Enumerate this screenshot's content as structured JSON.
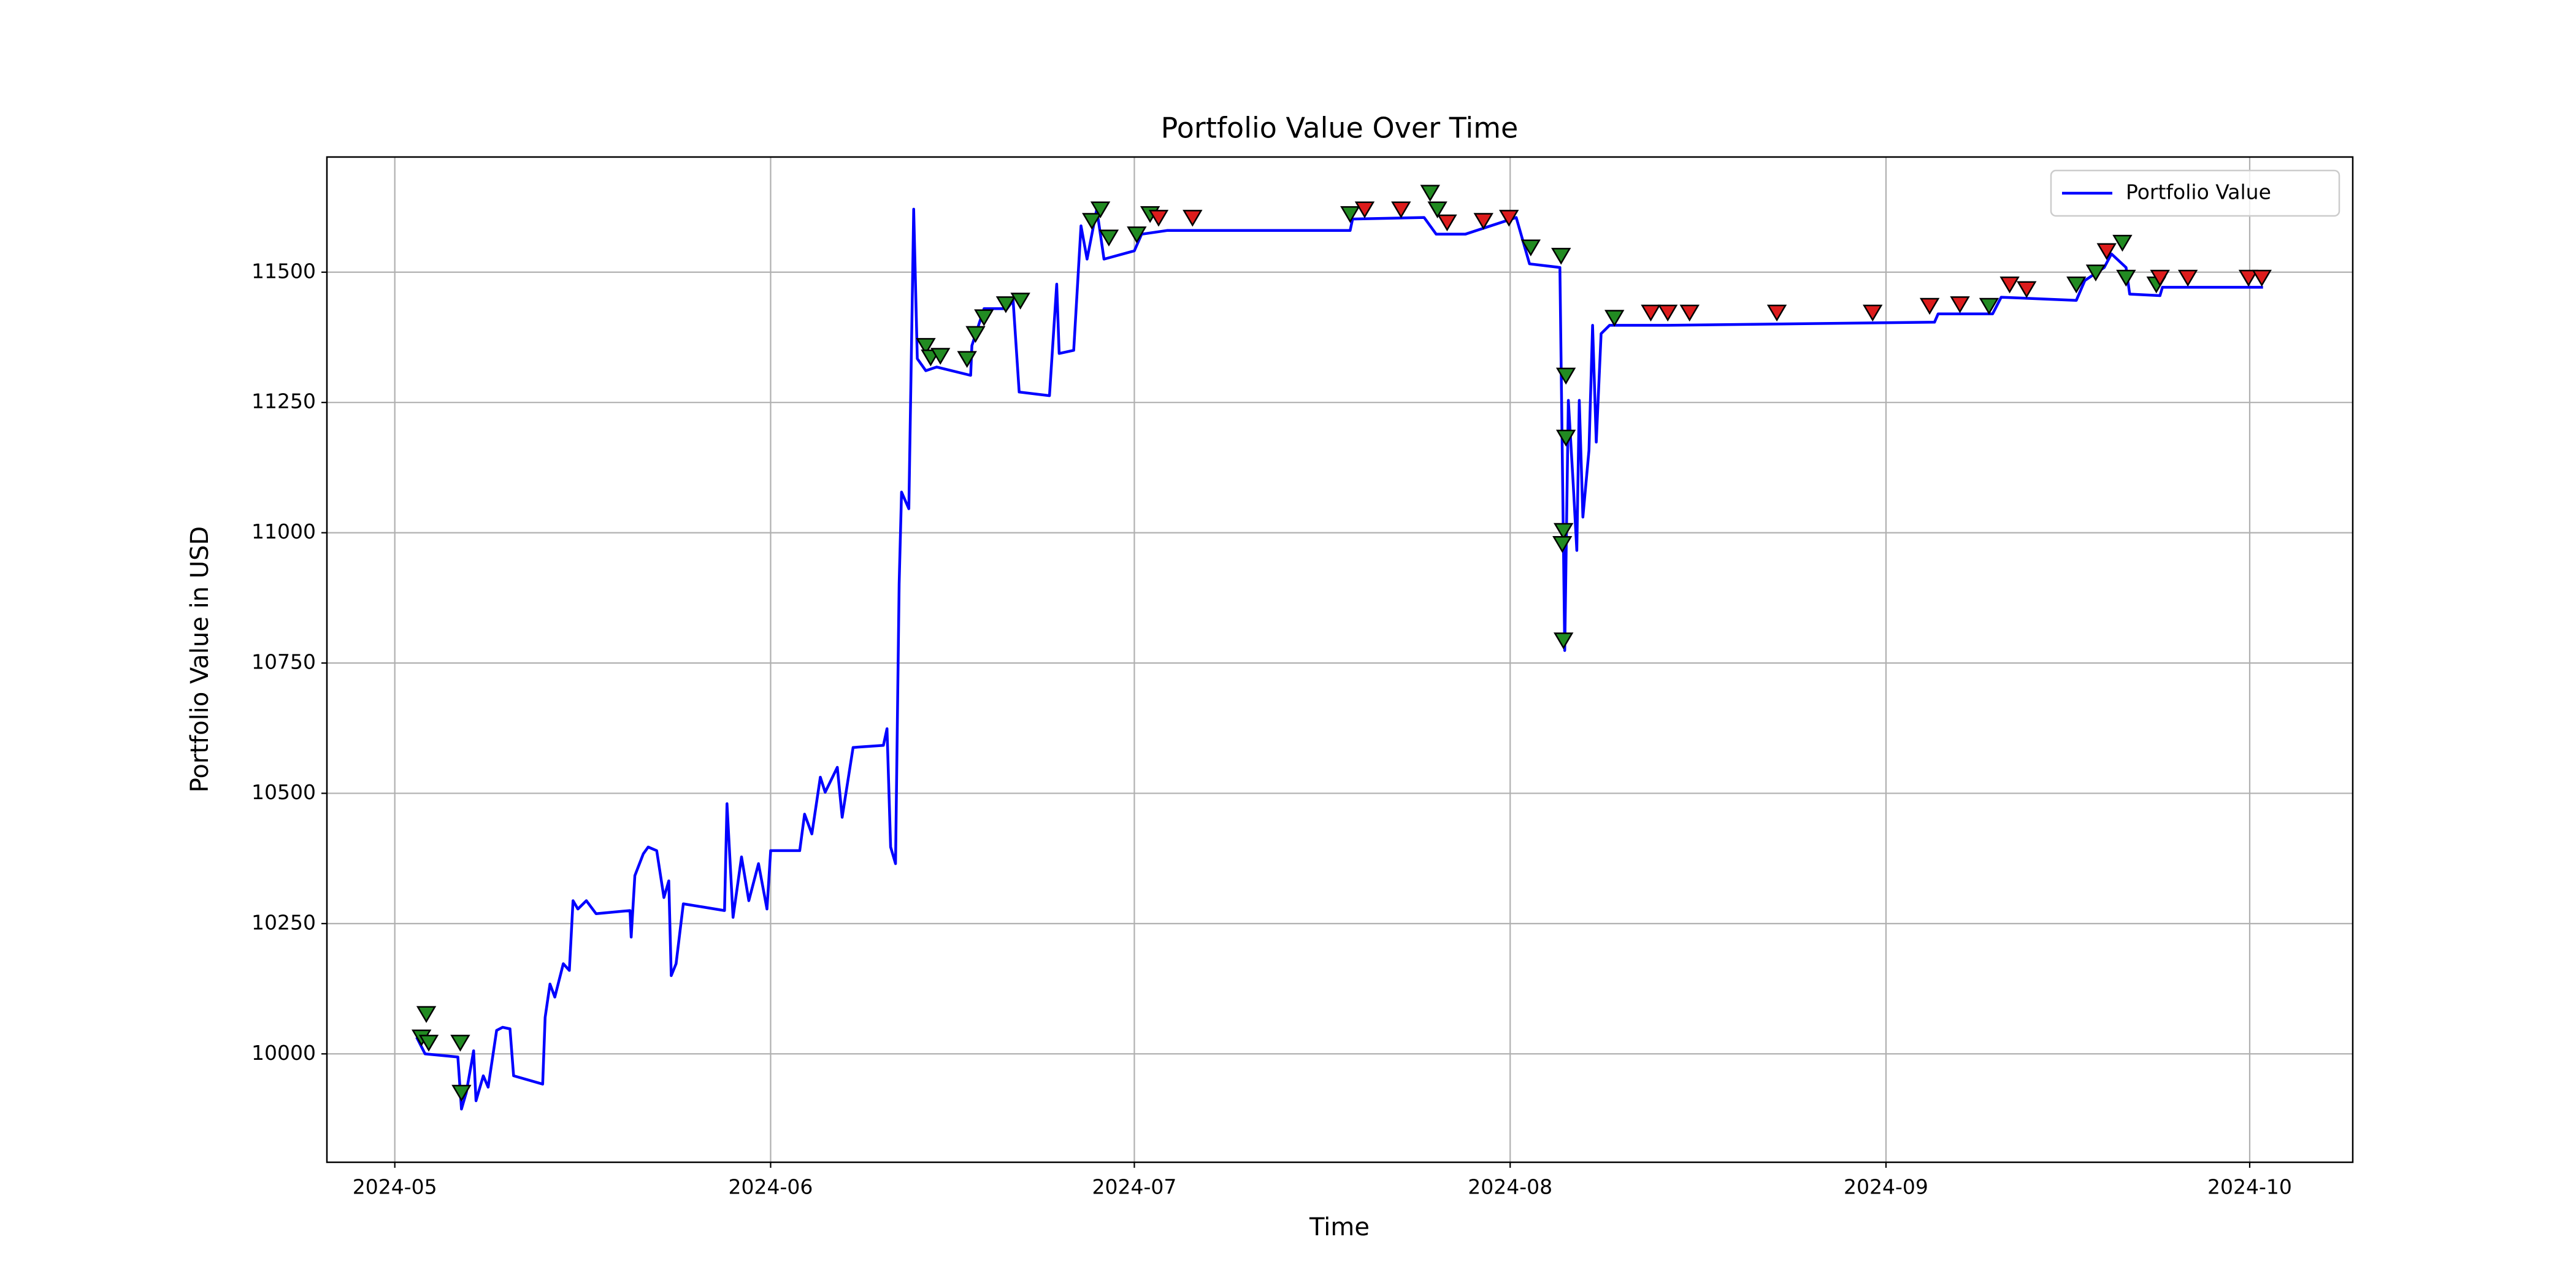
{
  "chart_data": {
    "type": "line",
    "title": "Portfolio Value Over Time",
    "xlabel": "Time",
    "ylabel": "Portfolio Value in USD",
    "xlim": [
      -5.6,
      161.5
    ],
    "ylim": [
      9792,
      11721
    ],
    "xticks": [
      {
        "value": 0,
        "label": "2024-05"
      },
      {
        "value": 31,
        "label": "2024-06"
      },
      {
        "value": 61,
        "label": "2024-07"
      },
      {
        "value": 92,
        "label": "2024-08"
      },
      {
        "value": 123,
        "label": "2024-09"
      },
      {
        "value": 153,
        "label": "2024-10"
      }
    ],
    "yticks": [
      10000,
      10250,
      10500,
      10750,
      11000,
      11250,
      11500
    ],
    "grid": true,
    "legend": "upper right",
    "series": [
      {
        "name": "Portfolio Value",
        "color": "#0000ff",
        "x": [
          1.8,
          2.5,
          5.2,
          5.5,
          5.9,
          6.5,
          6.7,
          7.3,
          7.7,
          8.4,
          8.9,
          9.5,
          9.8,
          12.2,
          12.4,
          12.8,
          13.2,
          13.9,
          14.4,
          14.7,
          15.1,
          15.8,
          16.6,
          19.4,
          19.5,
          19.8,
          20.5,
          20.9,
          21.6,
          22.2,
          22.6,
          22.8,
          23.2,
          23.8,
          27.2,
          27.4,
          27.9,
          28.6,
          29.2,
          30.0,
          30.7,
          31.0,
          33.4,
          33.8,
          34.4,
          35.1,
          35.5,
          36.5,
          36.9,
          37.8,
          40.3,
          40.6,
          40.9,
          41.3,
          41.6,
          41.8,
          42.4,
          42.7,
          42.8,
          43.1,
          43.8,
          44.7,
          47.5,
          47.6,
          48.6,
          50.5,
          51.0,
          51.5,
          54.0,
          54.6,
          54.8,
          56.0,
          56.6,
          57.1,
          57.9,
          58.5,
          61.0,
          61.6,
          63.7,
          78.8,
          79.0,
          84.9,
          85.9,
          88.3,
          90.4,
          92.5,
          93.6,
          96.1,
          96.4,
          96.5,
          96.8,
          97.2,
          97.5,
          97.7,
          98.0,
          98.5,
          98.8,
          99.1,
          99.5,
          100.2,
          101.1,
          105.0,
          127.0,
          127.3,
          131.8,
          132.5,
          138.7,
          139.4,
          141.0,
          141.6,
          142.8,
          143.1,
          145.6,
          145.8,
          154.1
        ],
        "values": [
          10032,
          10000,
          9994,
          9894,
          9926,
          10006,
          9910,
          9958,
          9936,
          10045,
          10051,
          10048,
          9958,
          9942,
          10070,
          10134,
          10109,
          10173,
          10160,
          10294,
          10278,
          10294,
          10269,
          10275,
          10224,
          10342,
          10384,
          10397,
          10390,
          10300,
          10332,
          10150,
          10173,
          10288,
          10275,
          10480,
          10262,
          10378,
          10294,
          10365,
          10278,
          10390,
          10390,
          10460,
          10422,
          10531,
          10502,
          10550,
          10454,
          10588,
          10592,
          10624,
          10397,
          10365,
          10902,
          11078,
          11046,
          11471,
          11621,
          11334,
          11311,
          11318,
          11302,
          11359,
          11430,
          11430,
          11446,
          11270,
          11263,
          11477,
          11344,
          11350,
          11589,
          11525,
          11621,
          11525,
          11541,
          11573,
          11580,
          11580,
          11602,
          11605,
          11573,
          11573,
          11589,
          11605,
          11516,
          11509,
          10966,
          10774,
          11254,
          11094,
          10966,
          11254,
          11030,
          11158,
          11398,
          11174,
          11382,
          11398,
          11398,
          11398,
          11404,
          11420,
          11420,
          11452,
          11446,
          11484,
          11509,
          11535,
          11509,
          11458,
          11455,
          11471,
          11471
        ]
      },
      {
        "color": "#228b22",
        "marker": "v",
        "x": [
          2.2,
          2.6,
          2.8,
          5.4,
          5.5,
          43.8,
          44.2,
          45.0,
          47.2,
          47.9,
          48.6,
          50.4,
          51.6,
          57.5,
          58.2,
          58.9,
          61.2,
          62.3,
          78.8,
          85.4,
          86.0,
          93.7,
          96.2,
          96.6,
          96.6,
          96.4,
          96.3,
          96.4,
          100.6,
          131.5,
          138.7,
          140.3,
          142.5,
          142.8,
          145.3
        ],
        "values": [
          10032,
          10077,
          10022,
          10022,
          9926,
          11359,
          11337,
          11340,
          11334,
          11382,
          11414,
          11439,
          11446,
          11599,
          11621,
          11567,
          11573,
          11612,
          11612,
          11653,
          11621,
          11548,
          11532,
          11302,
          11183,
          11004,
          10979,
          10794,
          11413,
          11436,
          11477,
          11500,
          11557,
          11490,
          11477
        ]
      },
      {
        "color": "#dd1c1c",
        "marker": "v",
        "x": [
          63.0,
          65.8,
          80.0,
          83.0,
          86.8,
          89.8,
          91.9,
          103.6,
          105.0,
          106.8,
          114.0,
          121.9,
          126.6,
          129.1,
          133.2,
          134.6,
          141.2,
          145.6,
          147.9,
          152.9,
          154.0
        ],
        "values": [
          11605,
          11605,
          11621,
          11621,
          11596,
          11599,
          11605,
          11423,
          11423,
          11423,
          11423,
          11423,
          11436,
          11439,
          11477,
          11468,
          11541,
          11490,
          11490,
          11490,
          11490
        ]
      }
    ]
  }
}
